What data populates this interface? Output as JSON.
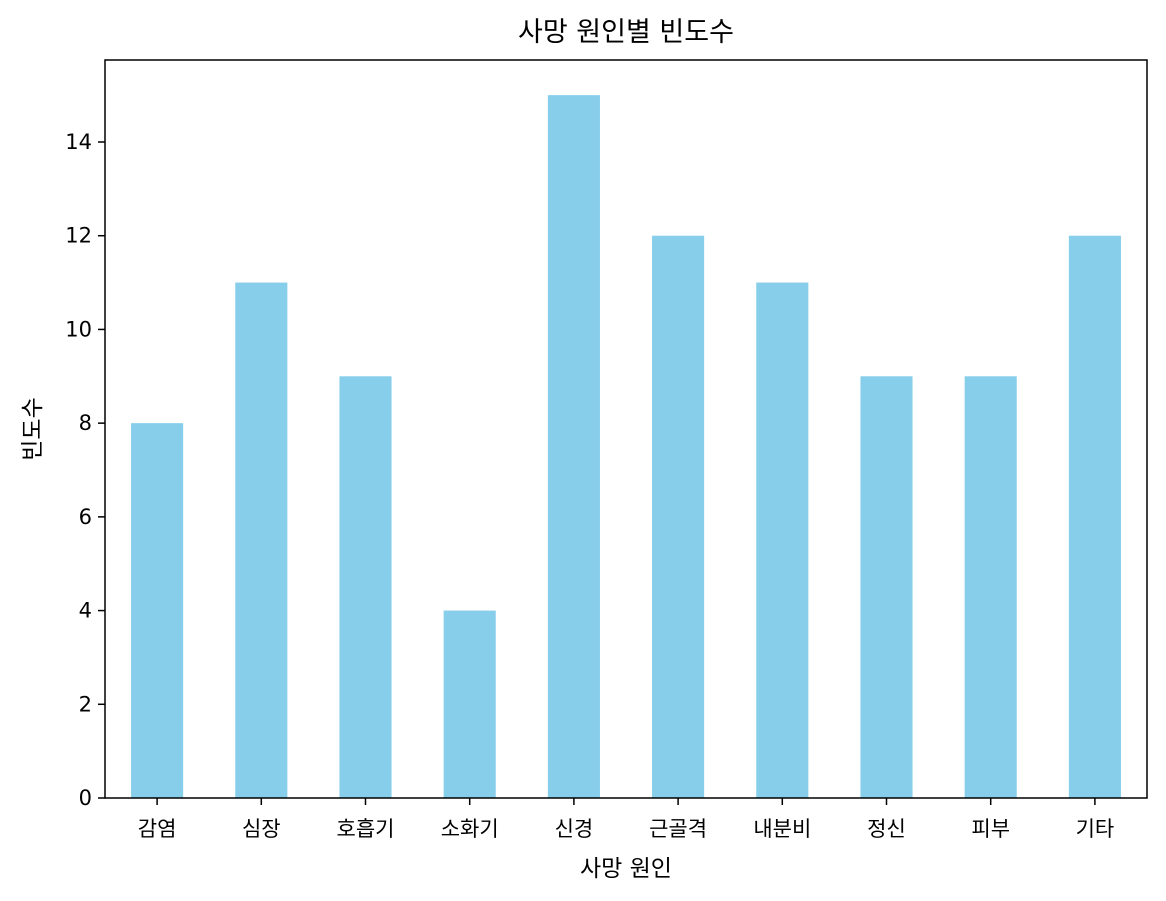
{
  "chart_data": {
    "type": "bar",
    "title": "사망 원인별 빈도수",
    "xlabel": "사망 원인",
    "ylabel": "빈도수",
    "categories": [
      "감염",
      "심장",
      "호흡기",
      "소화기",
      "신경",
      "근골격",
      "내분비",
      "정신",
      "피부",
      "기타"
    ],
    "values": [
      8,
      11,
      9,
      4,
      15,
      12,
      11,
      9,
      9,
      12
    ],
    "ylim": [
      0,
      15.75
    ],
    "yticks": [
      0,
      2,
      4,
      6,
      8,
      10,
      12,
      14
    ],
    "bar_color": "#87CEEB",
    "grid": false,
    "legend": "none"
  }
}
